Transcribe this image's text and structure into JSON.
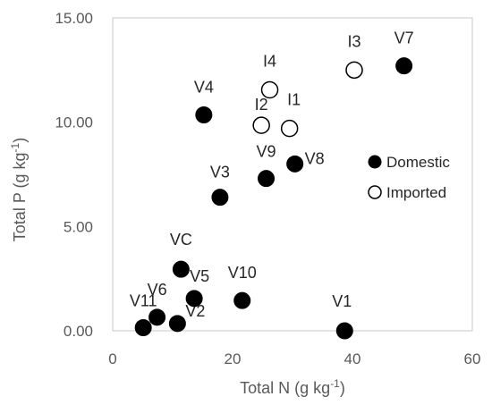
{
  "chart_data": {
    "type": "scatter",
    "xlabel": "Total N (g kg",
    "xlabel_sup": "-1",
    "xlabel_end": ")",
    "ylabel": "Total P (g kg",
    "ylabel_sup": "-1",
    "ylabel_end": ")",
    "xlim": [
      0,
      60
    ],
    "ylim": [
      0,
      15
    ],
    "x_ticks": [
      "0",
      "20",
      "40",
      "60"
    ],
    "y_ticks": [
      "0.00",
      "5.00",
      "10.00",
      "15.00"
    ],
    "grid": false,
    "legend_position": "right",
    "series": [
      {
        "name": "Domestic",
        "marker": "filled-circle",
        "color": "#000000",
        "points": [
          {
            "label": "V1",
            "x": 38.7,
            "y": 0.0
          },
          {
            "label": "V2",
            "x": 10.8,
            "y": 0.35
          },
          {
            "label": "V3",
            "x": 17.9,
            "y": 6.4
          },
          {
            "label": "V4",
            "x": 15.2,
            "y": 10.35
          },
          {
            "label": "V5",
            "x": 13.6,
            "y": 1.55
          },
          {
            "label": "V6",
            "x": 7.4,
            "y": 0.65
          },
          {
            "label": "V7",
            "x": 48.6,
            "y": 12.7
          },
          {
            "label": "V8",
            "x": 30.4,
            "y": 8.0
          },
          {
            "label": "V9",
            "x": 25.6,
            "y": 7.3
          },
          {
            "label": "V10",
            "x": 21.6,
            "y": 1.45
          },
          {
            "label": "V11",
            "x": 5.1,
            "y": 0.15
          },
          {
            "label": "VC",
            "x": 11.4,
            "y": 2.95
          }
        ]
      },
      {
        "name": "Imported",
        "marker": "open-circle",
        "color": "#000000",
        "points": [
          {
            "label": "I1",
            "x": 29.5,
            "y": 9.7
          },
          {
            "label": "I2",
            "x": 24.8,
            "y": 9.85
          },
          {
            "label": "I3",
            "x": 40.3,
            "y": 12.5
          },
          {
            "label": "I4",
            "x": 26.2,
            "y": 11.55
          }
        ]
      }
    ]
  }
}
